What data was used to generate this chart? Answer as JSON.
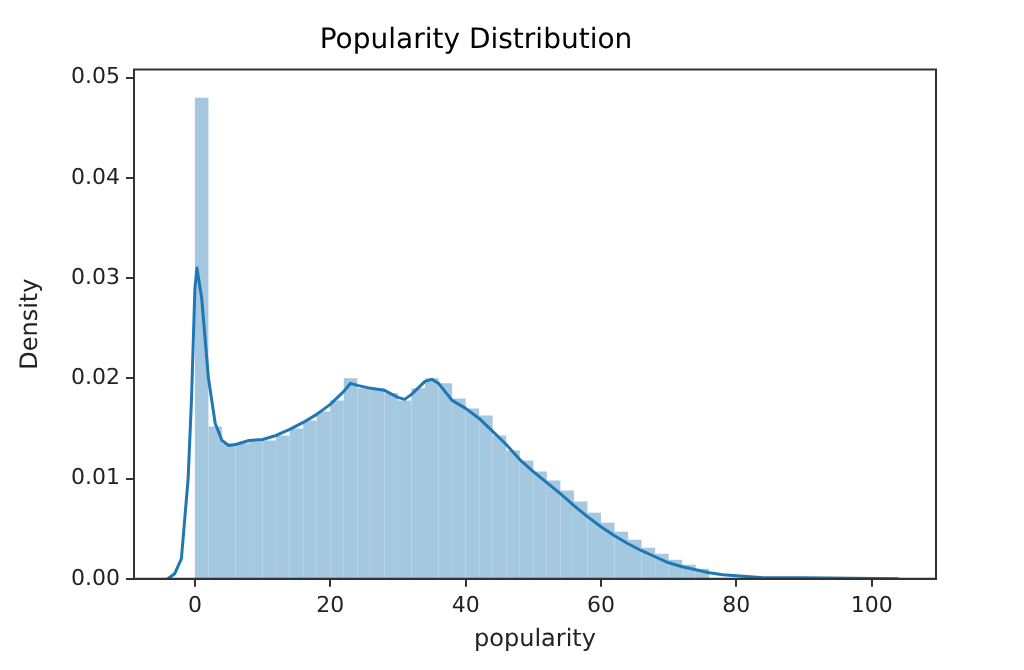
{
  "chart_data": {
    "type": "histogram",
    "title": "Popularity Distribution",
    "xlabel": "popularity",
    "ylabel": "Density",
    "bins": [
      0,
      2,
      4,
      6,
      8,
      10,
      12,
      14,
      16,
      18,
      20,
      22,
      24,
      26,
      28,
      30,
      32,
      34,
      36,
      38,
      40,
      42,
      44,
      46,
      48,
      50,
      52,
      54,
      56,
      58,
      60,
      62,
      64,
      66,
      68,
      70,
      72,
      74,
      76,
      78,
      80,
      82,
      84,
      86,
      88,
      90,
      92,
      94,
      96,
      98,
      100
    ],
    "values": [
      0.048,
      0.0152,
      0.0135,
      0.0135,
      0.0138,
      0.0138,
      0.0143,
      0.015,
      0.0158,
      0.0167,
      0.0178,
      0.02,
      0.019,
      0.019,
      0.0185,
      0.0178,
      0.019,
      0.02,
      0.0195,
      0.018,
      0.017,
      0.0163,
      0.0143,
      0.0128,
      0.0118,
      0.0107,
      0.0098,
      0.0088,
      0.0077,
      0.0066,
      0.0056,
      0.0047,
      0.0039,
      0.0031,
      0.0025,
      0.0019,
      0.0014,
      0.001,
      null,
      null,
      null,
      0.0002,
      0.0001,
      0.0001,
      0,
      0,
      0,
      0,
      0,
      0
    ],
    "color": "#a5c8e1",
    "series": [
      {
        "type": "line",
        "color": "#1f77b4",
        "x": [
          -4,
          -3,
          -2,
          -1,
          -0.5,
          0,
          0.3,
          1,
          2,
          3,
          4,
          5,
          6,
          8,
          10,
          12,
          14,
          16,
          18,
          20,
          22,
          23,
          24,
          26,
          28,
          30,
          31,
          32,
          34,
          35,
          36,
          38,
          40,
          42,
          44,
          46,
          48,
          50,
          52,
          54,
          56,
          58,
          60,
          62,
          64,
          66,
          68,
          70,
          72,
          74,
          76,
          78,
          80,
          84,
          90,
          104
        ],
        "values": [
          0,
          0.0005,
          0.002,
          0.01,
          0.018,
          0.029,
          0.031,
          0.028,
          0.02,
          0.0155,
          0.0138,
          0.0133,
          0.0134,
          0.0138,
          0.0139,
          0.0143,
          0.0149,
          0.0156,
          0.0164,
          0.0174,
          0.0187,
          0.0195,
          0.0193,
          0.019,
          0.0188,
          0.0181,
          0.0179,
          0.0184,
          0.0197,
          0.0199,
          0.0195,
          0.0178,
          0.017,
          0.016,
          0.0147,
          0.0134,
          0.0119,
          0.0107,
          0.0096,
          0.0085,
          0.0073,
          0.0062,
          0.0052,
          0.0043,
          0.0035,
          0.0028,
          0.0022,
          0.0016,
          0.0012,
          0.0009,
          0.0006,
          0.0004,
          0.0003,
          0.0001,
          0.0001,
          0
        ]
      }
    ],
    "xlim": [
      -9,
      109.5
    ],
    "xticks": [
      0,
      20,
      40,
      60,
      80,
      100
    ],
    "ylim": [
      0,
      0.0508
    ],
    "yticks": [
      {
        "value": 0,
        "label": "0.00"
      },
      {
        "value": 0.01,
        "label": "0.01"
      },
      {
        "value": 0.02,
        "label": "0.02"
      },
      {
        "value": 0.03,
        "label": "0.03"
      },
      {
        "value": 0.04,
        "label": "0.04"
      },
      {
        "value": 0.05,
        "label": "0.05"
      }
    ],
    "grid": false,
    "legend": false,
    "marker": "none",
    "line_style": "solid"
  }
}
